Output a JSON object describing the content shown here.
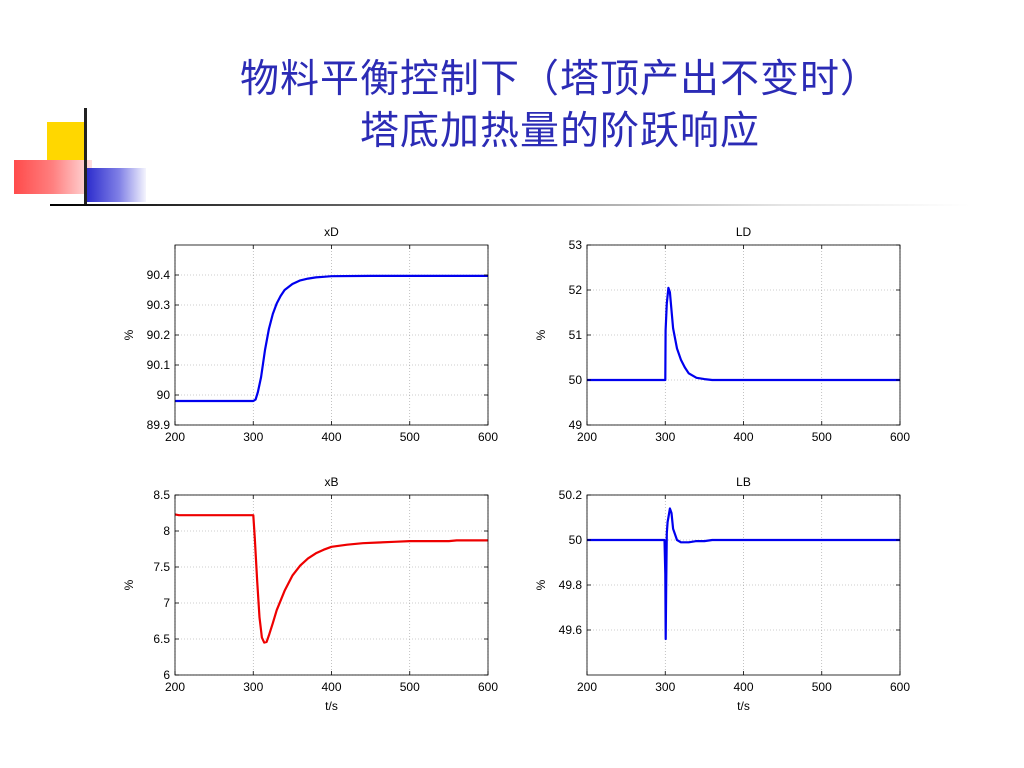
{
  "slide": {
    "title_line1": "物料平衡控制下（塔顶产出不变时）",
    "title_line2": "塔底加热量的阶跃响应"
  },
  "colors": {
    "title": "#2B2BB5",
    "blue_series": "#0000EE",
    "red_series": "#EE0000",
    "deco_yellow": "#FFD700",
    "deco_red": "#FF4B4B",
    "deco_blue": "#2B2BCC"
  },
  "chart_data": [
    {
      "type": "line",
      "title": "xD",
      "xlabel": "",
      "ylabel": "%",
      "xlim": [
        200,
        600
      ],
      "ylim": [
        89.9,
        90.5
      ],
      "xticks": [
        200,
        300,
        400,
        500,
        600
      ],
      "yticks": [
        89.9,
        90,
        90.1,
        90.2,
        90.3,
        90.4
      ],
      "ytick_labels": [
        "89.9",
        "90",
        "90.1",
        "90.2",
        "90.3",
        "90.4"
      ],
      "grid": true,
      "color": "#0000EE",
      "series": [
        {
          "x": [
            200,
            300,
            303,
            306,
            310,
            315,
            320,
            325,
            330,
            335,
            340,
            345,
            350,
            360,
            370,
            380,
            390,
            400,
            450,
            500,
            550,
            600
          ],
          "y": [
            89.98,
            89.98,
            89.985,
            90.01,
            90.06,
            90.15,
            90.22,
            90.27,
            90.305,
            90.33,
            90.35,
            90.36,
            90.37,
            90.382,
            90.388,
            90.392,
            90.394,
            90.396,
            90.397,
            90.397,
            90.397,
            90.397
          ]
        }
      ]
    },
    {
      "type": "line",
      "title": "LD",
      "xlabel": "",
      "ylabel": "%",
      "xlim": [
        200,
        600
      ],
      "ylim": [
        49,
        53
      ],
      "xticks": [
        200,
        300,
        400,
        500,
        600
      ],
      "yticks": [
        49,
        50,
        51,
        52,
        53
      ],
      "ytick_labels": [
        "49",
        "50",
        "51",
        "52",
        "53"
      ],
      "grid": true,
      "color": "#0000EE",
      "series": [
        {
          "x": [
            200,
            300,
            300.5,
            302,
            304,
            306,
            308,
            310,
            315,
            320,
            325,
            330,
            340,
            350,
            360,
            400,
            500,
            600
          ],
          "y": [
            50,
            50,
            51.1,
            51.7,
            52.05,
            51.95,
            51.55,
            51.15,
            50.7,
            50.45,
            50.28,
            50.15,
            50.05,
            50.02,
            50.0,
            50.0,
            50.0,
            50.0
          ]
        }
      ]
    },
    {
      "type": "line",
      "title": "xB",
      "xlabel": "t/s",
      "ylabel": "%",
      "xlim": [
        200,
        600
      ],
      "ylim": [
        6,
        8.5
      ],
      "xticks": [
        200,
        300,
        400,
        500,
        600
      ],
      "yticks": [
        6,
        6.5,
        7,
        7.5,
        8,
        8.5
      ],
      "ytick_labels": [
        "6",
        "6.5",
        "7",
        "7.5",
        "8",
        "8.5"
      ],
      "grid": true,
      "color": "#EE0000",
      "series": [
        {
          "x": [
            200,
            205,
            300,
            302,
            305,
            308,
            311,
            314,
            317,
            320,
            325,
            330,
            340,
            350,
            360,
            370,
            380,
            390,
            400,
            420,
            440,
            460,
            480,
            500,
            540,
            550,
            560,
            600
          ],
          "y": [
            8.23,
            8.22,
            8.22,
            7.9,
            7.3,
            6.8,
            6.52,
            6.45,
            6.46,
            6.55,
            6.72,
            6.9,
            7.17,
            7.38,
            7.52,
            7.62,
            7.69,
            7.74,
            7.78,
            7.81,
            7.83,
            7.84,
            7.85,
            7.86,
            7.86,
            7.86,
            7.87,
            7.87
          ]
        }
      ]
    },
    {
      "type": "line",
      "title": "LB",
      "xlabel": "t/s",
      "ylabel": "%",
      "xlim": [
        200,
        600
      ],
      "ylim": [
        49.4,
        50.2
      ],
      "xticks": [
        200,
        300,
        400,
        500,
        600
      ],
      "yticks": [
        49.6,
        49.8,
        50,
        50.2
      ],
      "ytick_labels": [
        "49.6",
        "49.8",
        "50",
        "50.2"
      ],
      "grid": true,
      "color": "#0000EE",
      "series": [
        {
          "x": [
            200,
            299,
            300,
            300.6,
            301.2,
            302,
            303,
            304,
            306,
            308,
            310,
            315,
            320,
            330,
            340,
            350,
            360,
            400,
            500,
            600
          ],
          "y": [
            50,
            50,
            49.85,
            49.56,
            49.8,
            50.03,
            50.08,
            50.1,
            50.14,
            50.12,
            50.05,
            50.0,
            49.99,
            49.99,
            49.995,
            49.995,
            50.0,
            50.0,
            50.0,
            50.0
          ]
        }
      ]
    }
  ]
}
